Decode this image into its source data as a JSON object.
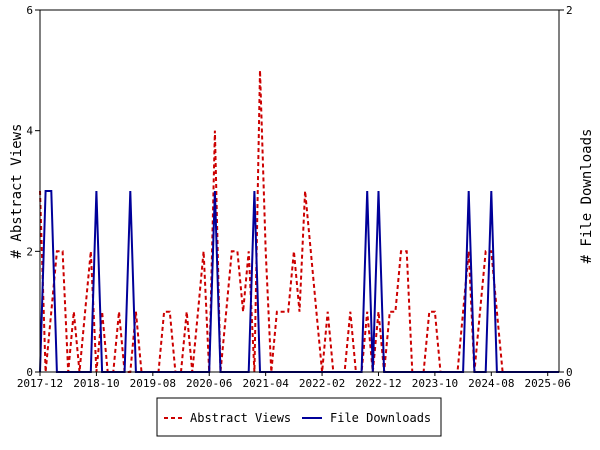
{
  "chart_data": {
    "type": "line",
    "title": "",
    "xlabel": "",
    "ylabel_left": "# Abstract Views",
    "ylabel_right": "# File Downloads",
    "x_tick_labels": [
      "2017-12",
      "2018-10",
      "2019-08",
      "2020-06",
      "2021-04",
      "2022-02",
      "2022-12",
      "2023-10",
      "2024-08",
      "2025-06"
    ],
    "x_range": [
      "2017-12",
      "2025-08"
    ],
    "ylim_left": [
      0,
      6
    ],
    "ylim_right": [
      0,
      2
    ],
    "yticks_left": [
      0,
      2,
      4,
      6
    ],
    "yticks_right": [
      0,
      2
    ],
    "grid": false,
    "legend_position": "bottom-center",
    "series": [
      {
        "name": "Abstract Views",
        "axis": "left",
        "color": "#cc0000",
        "style": "dashed",
        "points": [
          [
            "2017-12",
            3
          ],
          [
            "2018-01",
            0
          ],
          [
            "2018-02",
            1
          ],
          [
            "2018-03",
            2
          ],
          [
            "2018-04",
            2
          ],
          [
            "2018-05",
            0
          ],
          [
            "2018-06",
            1
          ],
          [
            "2018-07",
            0
          ],
          [
            "2018-08",
            1
          ],
          [
            "2018-09",
            2
          ],
          [
            "2018-10",
            0
          ],
          [
            "2018-11",
            1
          ],
          [
            "2018-12",
            0
          ],
          [
            "2019-01",
            0
          ],
          [
            "2019-02",
            1
          ],
          [
            "2019-03",
            0
          ],
          [
            "2019-04",
            0
          ],
          [
            "2019-05",
            1
          ],
          [
            "2019-06",
            0
          ],
          [
            "2019-07",
            0
          ],
          [
            "2019-08",
            0
          ],
          [
            "2019-09",
            0
          ],
          [
            "2019-10",
            1
          ],
          [
            "2019-11",
            1
          ],
          [
            "2019-12",
            0
          ],
          [
            "2020-01",
            0
          ],
          [
            "2020-02",
            1
          ],
          [
            "2020-03",
            0
          ],
          [
            "2020-04",
            1
          ],
          [
            "2020-05",
            2
          ],
          [
            "2020-06",
            0
          ],
          [
            "2020-07",
            4
          ],
          [
            "2020-08",
            0
          ],
          [
            "2020-09",
            1
          ],
          [
            "2020-10",
            2
          ],
          [
            "2020-11",
            2
          ],
          [
            "2020-12",
            1
          ],
          [
            "2021-01",
            2
          ],
          [
            "2021-02",
            0
          ],
          [
            "2021-03",
            5
          ],
          [
            "2021-04",
            2
          ],
          [
            "2021-05",
            0
          ],
          [
            "2021-06",
            1
          ],
          [
            "2021-07",
            1
          ],
          [
            "2021-08",
            1
          ],
          [
            "2021-09",
            2
          ],
          [
            "2021-10",
            1
          ],
          [
            "2021-11",
            3
          ],
          [
            "2021-12",
            2
          ],
          [
            "2022-01",
            1
          ],
          [
            "2022-02",
            0
          ],
          [
            "2022-03",
            1
          ],
          [
            "2022-04",
            0
          ],
          [
            "2022-05",
            0
          ],
          [
            "2022-06",
            0
          ],
          [
            "2022-07",
            1
          ],
          [
            "2022-08",
            0
          ],
          [
            "2022-09",
            0
          ],
          [
            "2022-10",
            1
          ],
          [
            "2022-11",
            0
          ],
          [
            "2022-12",
            1
          ],
          [
            "2023-01",
            0
          ],
          [
            "2023-02",
            1
          ],
          [
            "2023-03",
            1
          ],
          [
            "2023-04",
            2
          ],
          [
            "2023-05",
            2
          ],
          [
            "2023-06",
            0
          ],
          [
            "2023-07",
            0
          ],
          [
            "2023-08",
            0
          ],
          [
            "2023-09",
            1
          ],
          [
            "2023-10",
            1
          ],
          [
            "2023-11",
            0
          ],
          [
            "2023-12",
            0
          ],
          [
            "2024-01",
            0
          ],
          [
            "2024-02",
            0
          ],
          [
            "2024-03",
            1
          ],
          [
            "2024-04",
            2
          ],
          [
            "2024-05",
            0
          ],
          [
            "2024-06",
            1
          ],
          [
            "2024-07",
            2
          ],
          [
            "2024-08",
            2
          ],
          [
            "2024-09",
            1
          ],
          [
            "2024-10",
            0
          ],
          [
            "2024-11",
            0
          ],
          [
            "2024-12",
            0
          ],
          [
            "2025-01",
            0
          ],
          [
            "2025-02",
            0
          ],
          [
            "2025-03",
            0
          ],
          [
            "2025-04",
            0
          ],
          [
            "2025-05",
            0
          ],
          [
            "2025-06",
            0
          ],
          [
            "2025-07",
            0
          ],
          [
            "2025-08",
            0
          ]
        ]
      },
      {
        "name": "File Downloads",
        "axis": "right",
        "color": "#000099",
        "style": "solid",
        "points": [
          [
            "2017-12",
            0
          ],
          [
            "2018-01",
            1
          ],
          [
            "2018-02",
            1
          ],
          [
            "2018-03",
            0
          ],
          [
            "2018-04",
            0
          ],
          [
            "2018-05",
            0
          ],
          [
            "2018-06",
            0
          ],
          [
            "2018-07",
            0
          ],
          [
            "2018-08",
            0
          ],
          [
            "2018-09",
            0
          ],
          [
            "2018-10",
            1
          ],
          [
            "2018-11",
            0
          ],
          [
            "2018-12",
            0
          ],
          [
            "2019-01",
            0
          ],
          [
            "2019-02",
            0
          ],
          [
            "2019-03",
            0
          ],
          [
            "2019-04",
            1
          ],
          [
            "2019-05",
            0
          ],
          [
            "2019-06",
            0
          ],
          [
            "2019-07",
            0
          ],
          [
            "2019-08",
            0
          ],
          [
            "2019-09",
            0
          ],
          [
            "2019-10",
            0
          ],
          [
            "2019-11",
            0
          ],
          [
            "2019-12",
            0
          ],
          [
            "2020-01",
            0
          ],
          [
            "2020-02",
            0
          ],
          [
            "2020-03",
            0
          ],
          [
            "2020-04",
            0
          ],
          [
            "2020-05",
            0
          ],
          [
            "2020-06",
            0
          ],
          [
            "2020-07",
            1
          ],
          [
            "2020-08",
            0
          ],
          [
            "2020-09",
            0
          ],
          [
            "2020-10",
            0
          ],
          [
            "2020-11",
            0
          ],
          [
            "2020-12",
            0
          ],
          [
            "2021-01",
            0
          ],
          [
            "2021-02",
            1
          ],
          [
            "2021-03",
            0
          ],
          [
            "2021-04",
            0
          ],
          [
            "2021-05",
            0
          ],
          [
            "2021-06",
            0
          ],
          [
            "2021-07",
            0
          ],
          [
            "2021-08",
            0
          ],
          [
            "2021-09",
            0
          ],
          [
            "2021-10",
            0
          ],
          [
            "2021-11",
            0
          ],
          [
            "2021-12",
            0
          ],
          [
            "2022-01",
            0
          ],
          [
            "2022-02",
            0
          ],
          [
            "2022-03",
            0
          ],
          [
            "2022-04",
            0
          ],
          [
            "2022-05",
            0
          ],
          [
            "2022-06",
            0
          ],
          [
            "2022-07",
            0
          ],
          [
            "2022-08",
            0
          ],
          [
            "2022-09",
            0
          ],
          [
            "2022-10",
            1
          ],
          [
            "2022-11",
            0
          ],
          [
            "2022-12",
            1
          ],
          [
            "2023-01",
            0
          ],
          [
            "2023-02",
            0
          ],
          [
            "2023-03",
            0
          ],
          [
            "2023-04",
            0
          ],
          [
            "2023-05",
            0
          ],
          [
            "2023-06",
            0
          ],
          [
            "2023-07",
            0
          ],
          [
            "2023-08",
            0
          ],
          [
            "2023-09",
            0
          ],
          [
            "2023-10",
            0
          ],
          [
            "2023-11",
            0
          ],
          [
            "2023-12",
            0
          ],
          [
            "2024-01",
            0
          ],
          [
            "2024-02",
            0
          ],
          [
            "2024-03",
            0
          ],
          [
            "2024-04",
            1
          ],
          [
            "2024-05",
            0
          ],
          [
            "2024-06",
            0
          ],
          [
            "2024-07",
            0
          ],
          [
            "2024-08",
            1
          ],
          [
            "2024-09",
            0
          ],
          [
            "2024-10",
            0
          ],
          [
            "2024-11",
            0
          ],
          [
            "2024-12",
            0
          ],
          [
            "2025-01",
            0
          ],
          [
            "2025-02",
            0
          ],
          [
            "2025-03",
            0
          ],
          [
            "2025-04",
            0
          ],
          [
            "2025-05",
            0
          ],
          [
            "2025-06",
            0
          ],
          [
            "2025-07",
            0
          ],
          [
            "2025-08",
            0
          ]
        ]
      }
    ]
  }
}
